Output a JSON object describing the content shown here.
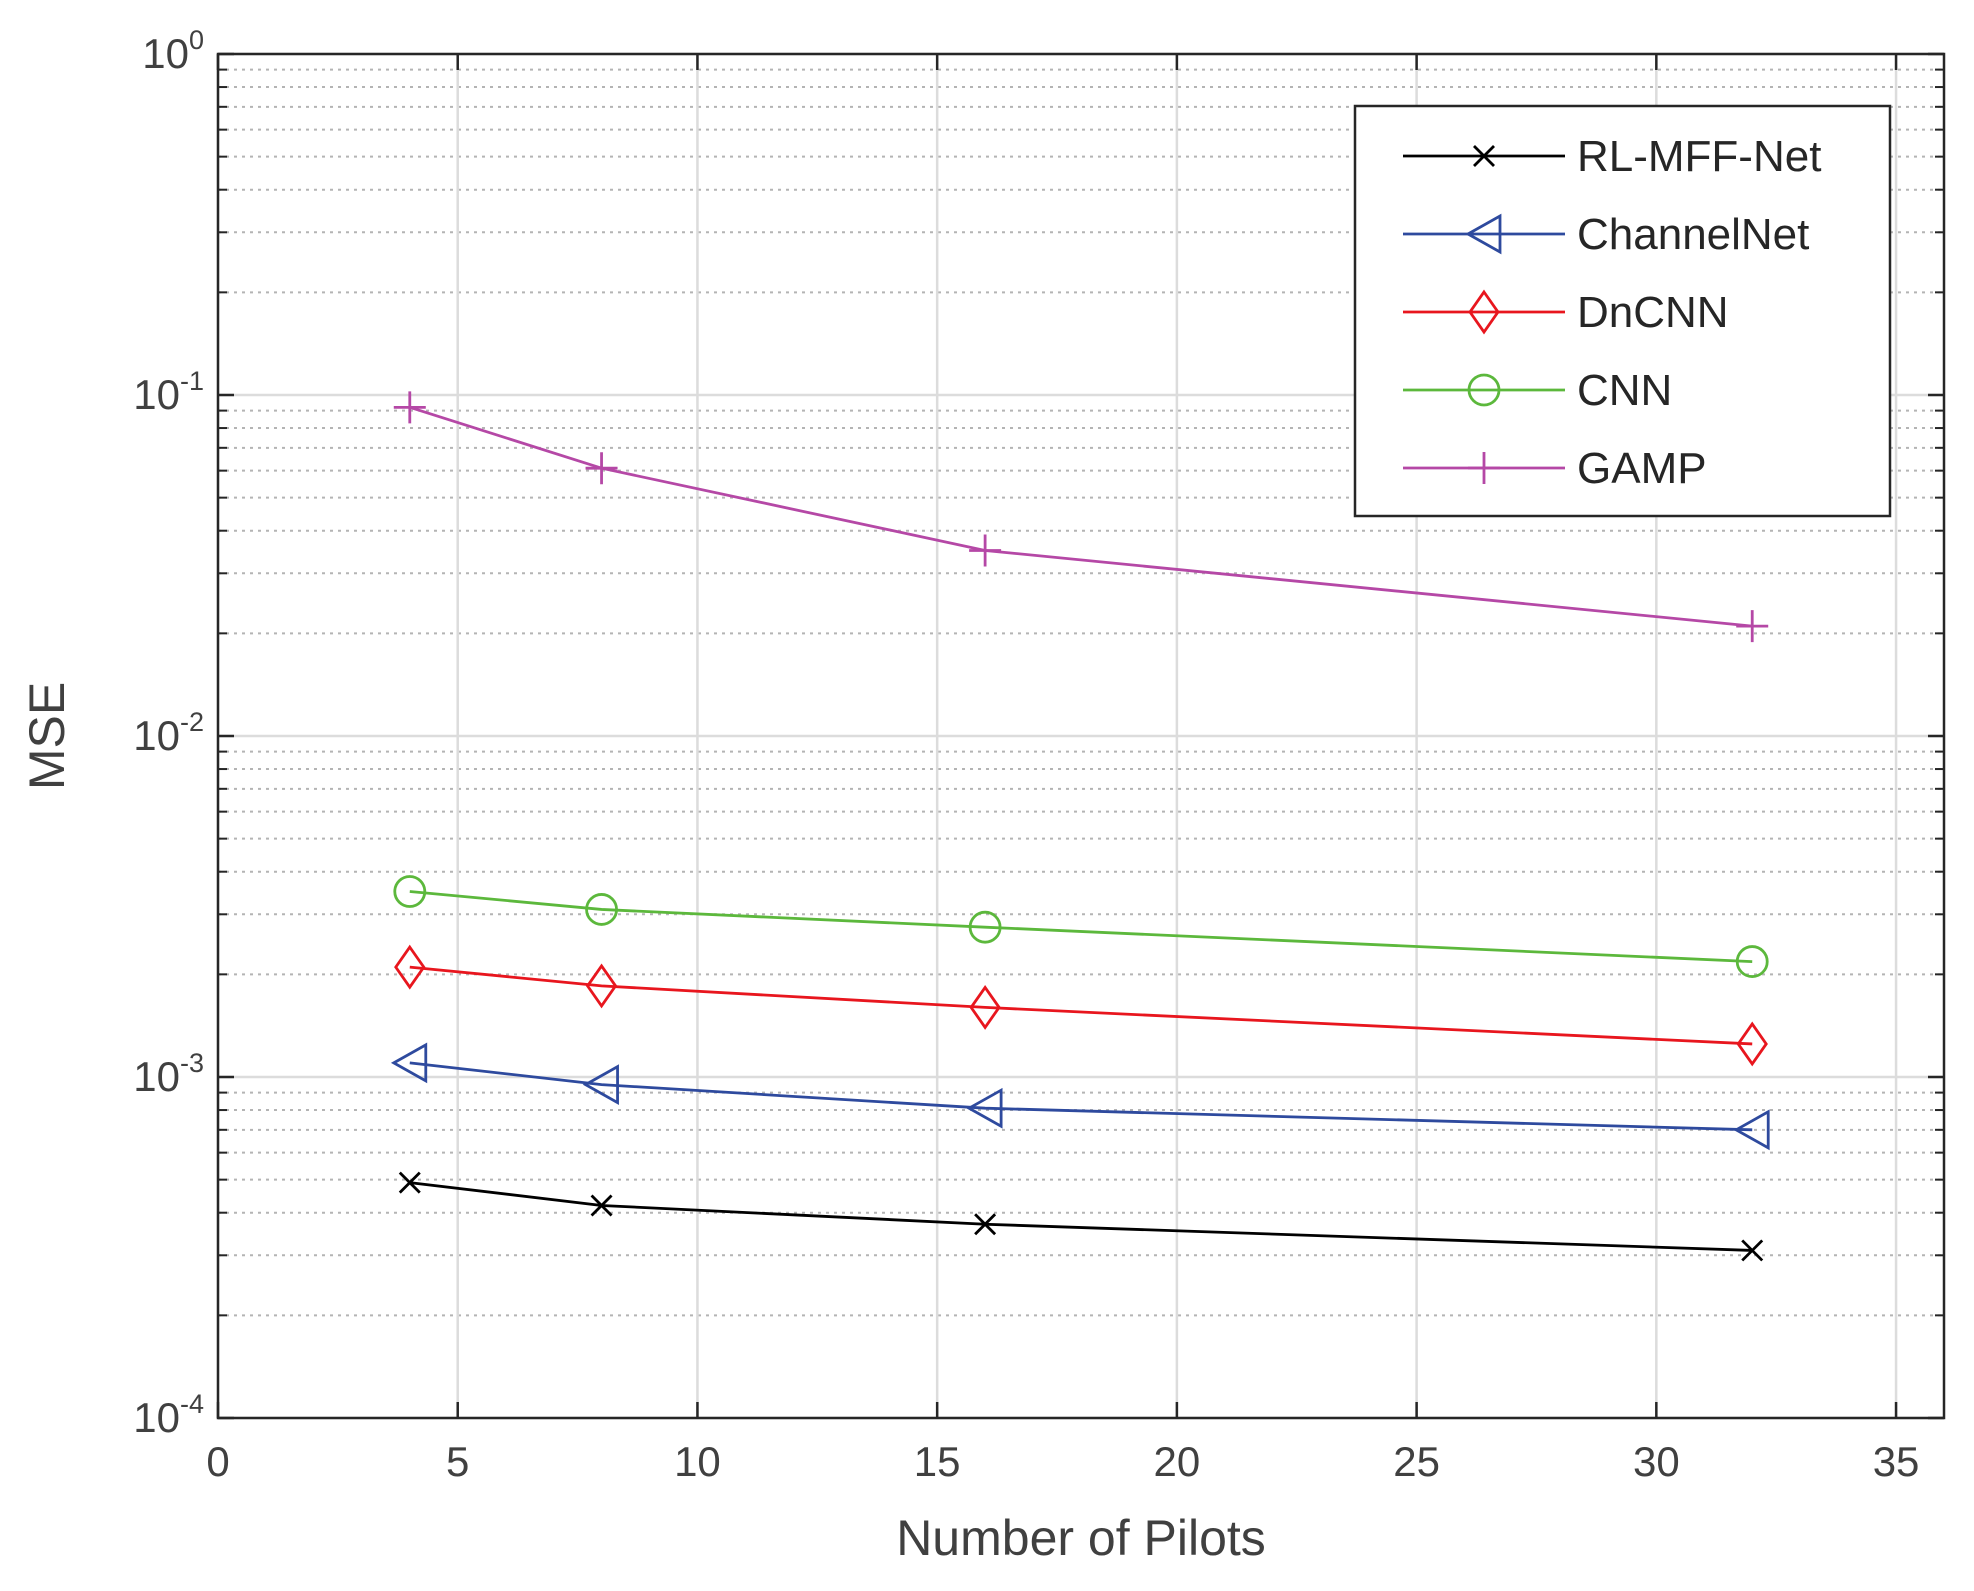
{
  "chart_data": {
    "type": "line",
    "x_scale": "linear",
    "y_scale": "log",
    "xlabel": "Number of Pilots",
    "ylabel": "MSE",
    "xlim": [
      0,
      36
    ],
    "ylim": [
      0.0001,
      1
    ],
    "x_ticks": [
      {
        "value": 0,
        "label": "0"
      },
      {
        "value": 5,
        "label": "5"
      },
      {
        "value": 10,
        "label": "10"
      },
      {
        "value": 15,
        "label": "15"
      },
      {
        "value": 20,
        "label": "20"
      },
      {
        "value": 25,
        "label": "25"
      },
      {
        "value": 30,
        "label": "30"
      },
      {
        "value": 35,
        "label": "35"
      }
    ],
    "y_ticks": [
      {
        "value": 0.0001,
        "base": "10",
        "exp": "-4"
      },
      {
        "value": 0.001,
        "base": "10",
        "exp": "-3"
      },
      {
        "value": 0.01,
        "base": "10",
        "exp": "-2"
      },
      {
        "value": 0.1,
        "base": "10",
        "exp": "-1"
      },
      {
        "value": 1,
        "base": "10",
        "exp": "0"
      }
    ],
    "grid": true,
    "legend_position": "top-right",
    "x": [
      4,
      8,
      16,
      32
    ],
    "series": [
      {
        "name": "RL-MFF-Net",
        "color": "#000000",
        "marker": "x",
        "values": [
          0.00049,
          0.00042,
          0.00037,
          0.00031
        ]
      },
      {
        "name": "ChannelNet",
        "color": "#2e4a9e",
        "marker": "triangle-left",
        "values": [
          0.0011,
          0.00095,
          0.00081,
          0.0007
        ]
      },
      {
        "name": "DnCNN",
        "color": "#e8161e",
        "marker": "diamond",
        "values": [
          0.0021,
          0.00185,
          0.0016,
          0.00125
        ]
      },
      {
        "name": "CNN",
        "color": "#5cb83c",
        "marker": "circle",
        "values": [
          0.0035,
          0.0031,
          0.00275,
          0.00218
        ]
      },
      {
        "name": "GAMP",
        "color": "#b548a6",
        "marker": "plus",
        "values": [
          0.092,
          0.061,
          0.035,
          0.021
        ]
      }
    ]
  }
}
